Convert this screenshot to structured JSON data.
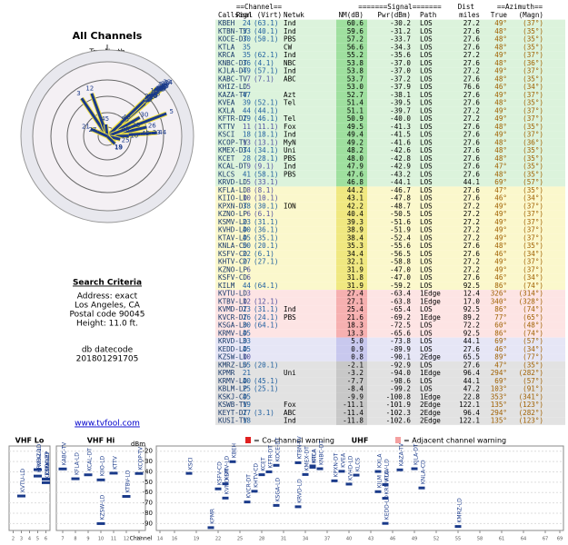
{
  "left": {
    "title": "All Channels",
    "north_true": "TrueNorth",
    "north_mag": "N",
    "search_title": "Search Criteria",
    "criteria": [
      "Address: exact",
      "Los Angeles, CA",
      "Postal code 90045",
      "Height: 11.0 ft."
    ],
    "datecode": [
      "db datecode",
      "201801291705"
    ],
    "link": "www.tvfool.com"
  },
  "table": {
    "group_headers": [
      "==Channel==",
      "=======Signal=======",
      "Dist",
      "==Azimuth=="
    ],
    "headers": [
      "Callsign",
      "Real (Virt)",
      "Netwk",
      "NM(dB)",
      "Pwr(dBm)",
      "Path",
      "miles",
      "True",
      "(Magn)"
    ],
    "rows": [
      [
        "KBEH",
        24,
        "(63.1)",
        "Ind",
        "60.6",
        "-30.2",
        "LOS",
        "27.2",
        "49°",
        "(37°)"
      ],
      [
        "KTBN-TV",
        33,
        "(40.1)",
        "Ind",
        "59.6",
        "-31.2",
        "LOS",
        "27.6",
        "48°",
        "(35°)"
      ],
      [
        "KOCE-DT",
        30,
        "(50.1)",
        "PBS",
        "57.2",
        "-33.7",
        "LOS",
        "27.6",
        "48°",
        "(35°)"
      ],
      [
        "KTLA",
        35,
        null,
        "CW",
        "56.6",
        "-34.3",
        "LOS",
        "27.6",
        "48°",
        "(35°)"
      ],
      [
        "KRCA",
        35,
        "(62.1)",
        "Ind",
        "55.2",
        "-35.6",
        "LOS",
        "27.2",
        "49°",
        "(37°)"
      ],
      [
        "KNBC-DT",
        36,
        "(4.1)",
        "NBC",
        "53.8",
        "-37.0",
        "LOS",
        "27.6",
        "48°",
        "(36°)"
      ],
      [
        "KJLA-DT",
        49,
        "(57.1)",
        "Ind",
        "53.8",
        "-37.0",
        "LOS",
        "27.2",
        "49°",
        "(37°)"
      ],
      [
        "KABC-TV",
        7,
        "(7.1)",
        "ABC",
        "53.7",
        "-37.2",
        "LOS",
        "27.6",
        "48°",
        "(35°)"
      ],
      [
        "KHIZ-LD",
        5,
        null,
        null,
        "53.0",
        "-37.9",
        "LOS",
        "76.6",
        "46°",
        "(34°)"
      ],
      [
        "KAZA-TV",
        47,
        null,
        "Azt",
        "52.7",
        "-38.1",
        "LOS",
        "27.6",
        "49°",
        "(37°)"
      ],
      [
        "KVEA",
        39,
        "(52.1)",
        "Tel",
        "51.4",
        "-39.5",
        "LOS",
        "27.6",
        "48°",
        "(35°)"
      ],
      [
        "KXLA",
        44,
        "(44.1)",
        null,
        "51.1",
        "-39.7",
        "LOS",
        "27.2",
        "49°",
        "(37°)"
      ],
      [
        "KFTR-DT",
        29,
        "(46.1)",
        "Tel",
        "50.9",
        "-40.0",
        "LOS",
        "27.2",
        "49°",
        "(37°)"
      ],
      [
        "KTTV",
        11,
        "(11.1)",
        "Fox",
        "49.5",
        "-41.3",
        "LOS",
        "27.6",
        "48°",
        "(35°)"
      ],
      [
        "KSCI",
        18,
        "(18.1)",
        "Ind",
        "49.4",
        "-41.5",
        "LOS",
        "27.6",
        "49°",
        "(37°)"
      ],
      [
        "KCOP-TV",
        13,
        "(13.1)",
        "MyN",
        "49.2",
        "-41.6",
        "LOS",
        "27.6",
        "48°",
        "(36°)"
      ],
      [
        "KMEX-DT",
        34,
        "(34.1)",
        "Uni",
        "48.2",
        "-42.6",
        "LOS",
        "27.6",
        "48°",
        "(35°)"
      ],
      [
        "KCET",
        28,
        "(28.1)",
        "PBS",
        "48.0",
        "-42.8",
        "LOS",
        "27.6",
        "48°",
        "(35°)"
      ],
      [
        "KCAL-DT",
        9,
        "(9.1)",
        "Ind",
        "47.9",
        "-42.9",
        "LOS",
        "27.6",
        "47°",
        "(35°)"
      ],
      [
        "KLCS",
        41,
        "(58.1)",
        "PBS",
        "47.6",
        "-43.2",
        "LOS",
        "27.6",
        "48°",
        "(35°)"
      ],
      [
        "KRVD-LD",
        5,
        "(33.1)",
        null,
        "46.8",
        "-44.1",
        "LOS",
        "44.1",
        "69°",
        "(57°)"
      ],
      [
        "KFLA-LD",
        8,
        "(8.1)",
        null,
        "44.2",
        "-46.7",
        "LOS",
        "27.6",
        "47°",
        "(35°)"
      ],
      [
        "KIIO-LD",
        10,
        "(10.1)",
        null,
        "43.1",
        "-47.8",
        "LOS",
        "27.6",
        "46°",
        "(34°)"
      ],
      [
        "KPXN-DT",
        38,
        "(30.1)",
        "ION",
        "42.2",
        "-48.7",
        "LOS",
        "27.2",
        "49°",
        "(37°)"
      ],
      [
        "KZNO-LP",
        6,
        "(6.1)",
        null,
        "40.4",
        "-50.5",
        "LOS",
        "27.2",
        "49°",
        "(37°)"
      ],
      [
        "KSMV-LD",
        23,
        "(31.1)",
        null,
        "39.3",
        "-51.6",
        "LOS",
        "27.2",
        "49°",
        "(37°)"
      ],
      [
        "KVHD-LD",
        40,
        "(36.1)",
        null,
        "38.9",
        "-51.9",
        "LOS",
        "27.2",
        "49°",
        "(37°)"
      ],
      [
        "KTAV-LD",
        45,
        "(35.1)",
        null,
        "38.4",
        "-52.4",
        "LOS",
        "27.2",
        "49°",
        "(37°)"
      ],
      [
        "KNLA-CD",
        50,
        "(20.1)",
        null,
        "35.3",
        "-55.6",
        "LOS",
        "27.6",
        "48°",
        "(35°)"
      ],
      [
        "KSFV-CD",
        22,
        "(6.1)",
        null,
        "34.4",
        "-56.5",
        "LOS",
        "27.6",
        "46°",
        "(34°)"
      ],
      [
        "KHTV-CD",
        27,
        "(27.1)",
        null,
        "32.1",
        "-58.8",
        "LOS",
        "27.2",
        "49°",
        "(37°)"
      ],
      [
        "KZNO-LP",
        6,
        null,
        null,
        "31.9",
        "-47.0",
        "LOS",
        "27.2",
        "49°",
        "(37°)"
      ],
      [
        "KSFV-CD",
        6,
        null,
        null,
        "31.8",
        "-47.0",
        "LOS",
        "27.6",
        "46°",
        "(34°)"
      ],
      [
        "KILM",
        44,
        "(64.1)",
        null,
        "31.9",
        "-59.2",
        "LOS",
        "92.5",
        "86°",
        "(74°)"
      ],
      [
        "KVTU-LD",
        3,
        null,
        null,
        "27.4",
        "-63.4",
        "1Edge",
        "12.4",
        "326°",
        "(314°)"
      ],
      [
        "KTBV-LD",
        12,
        "(12.1)",
        null,
        "27.1",
        "-63.8",
        "1Edge",
        "17.0",
        "340°",
        "(328°)"
      ],
      [
        "KVMD-DT",
        23,
        "(31.1)",
        "Ind",
        "25.4",
        "-65.4",
        "LOS",
        "92.5",
        "86°",
        "(74°)"
      ],
      [
        "KVCR-DT",
        26,
        "(24.1)",
        "PBS",
        "21.6",
        "-69.2",
        "1Edge",
        "89.2",
        "77°",
        "(65°)"
      ],
      [
        "KSGA-LD",
        30,
        "(64.1)",
        null,
        "18.3",
        "-72.5",
        "LOS",
        "72.2",
        "60°",
        "(48°)"
      ],
      [
        "KRMV-LD",
        45,
        null,
        null,
        "13.3",
        "-65.6",
        "LOS",
        "92.5",
        "86°",
        "(74°)"
      ],
      [
        "KRVD-LD",
        33,
        null,
        null,
        "5.0",
        "-73.8",
        "LOS",
        "44.1",
        "69°",
        "(57°)"
      ],
      [
        "KEDD-LD",
        45,
        null,
        null,
        "0.9",
        "-89.9",
        "LOS",
        "27.6",
        "46°",
        "(34°)"
      ],
      [
        "KZSW-LD",
        10,
        null,
        null,
        "0.8",
        "-90.1",
        "2Edge",
        "65.5",
        "89°",
        "(77°)"
      ],
      [
        "KMRZ-LD",
        55,
        "(20.1)",
        null,
        "-2.1",
        "-92.9",
        "LOS",
        "27.6",
        "47°",
        "(35°)"
      ],
      [
        "KPMR",
        21,
        null,
        "Uni",
        "-3.2",
        "-94.0",
        "1Edge",
        "96.4",
        "294°",
        "(282°)"
      ],
      [
        "KRMV-LD",
        40,
        "(45.1)",
        null,
        "-7.7",
        "-98.6",
        "LOS",
        "44.1",
        "69°",
        "(57°)"
      ],
      [
        "KBLM-LP",
        25,
        "(25.1)",
        null,
        "-8.4",
        "-99.2",
        "LOS",
        "47.2",
        "103°",
        "(91°)"
      ],
      [
        "KSKJ-CD",
        45,
        null,
        null,
        "-9.9",
        "-100.8",
        "1Edge",
        "22.8",
        "353°",
        "(341°)"
      ],
      [
        "KSWB-TV",
        19,
        null,
        "Fox",
        "-11.1",
        "-101.9",
        "2Edge",
        "122.1",
        "135°",
        "(123°)"
      ],
      [
        "KEYT-DT",
        27,
        "(3.1)",
        "ABC",
        "-11.4",
        "-102.3",
        "2Edge",
        "96.4",
        "294°",
        "(282°)"
      ],
      [
        "KUSI-TV",
        18,
        null,
        "Ind",
        "-11.8",
        "-102.6",
        "2Edge",
        "122.1",
        "135°",
        "(123°)"
      ]
    ]
  },
  "spectrum": {
    "bands": [
      {
        "name": "VHF Lo",
        "channels": [
          2,
          6
        ]
      },
      {
        "name": "VHF Hi",
        "channels": [
          7,
          13
        ]
      },
      {
        "name": "UHF",
        "channels": [
          14,
          69
        ]
      }
    ],
    "y_label": "dBm",
    "x_label": "Channel",
    "ylim": [
      -15,
      -95
    ],
    "yticks": [
      -20,
      -30,
      -40,
      -50,
      -60,
      -70,
      -80,
      -90
    ],
    "xticks": [
      2,
      3,
      4,
      5,
      6,
      7,
      8,
      9,
      10,
      11,
      12,
      13,
      14,
      16,
      19,
      22,
      25,
      28,
      31,
      34,
      37,
      40,
      43,
      46,
      49,
      52,
      55,
      58,
      61,
      64,
      67,
      69
    ],
    "legend": [
      "= Co-channel warning",
      "= Adjacent channel warning"
    ],
    "legend_colors": [
      "#e02020",
      "#f4a0a0"
    ],
    "mark_color": "#1a3a8a"
  }
}
